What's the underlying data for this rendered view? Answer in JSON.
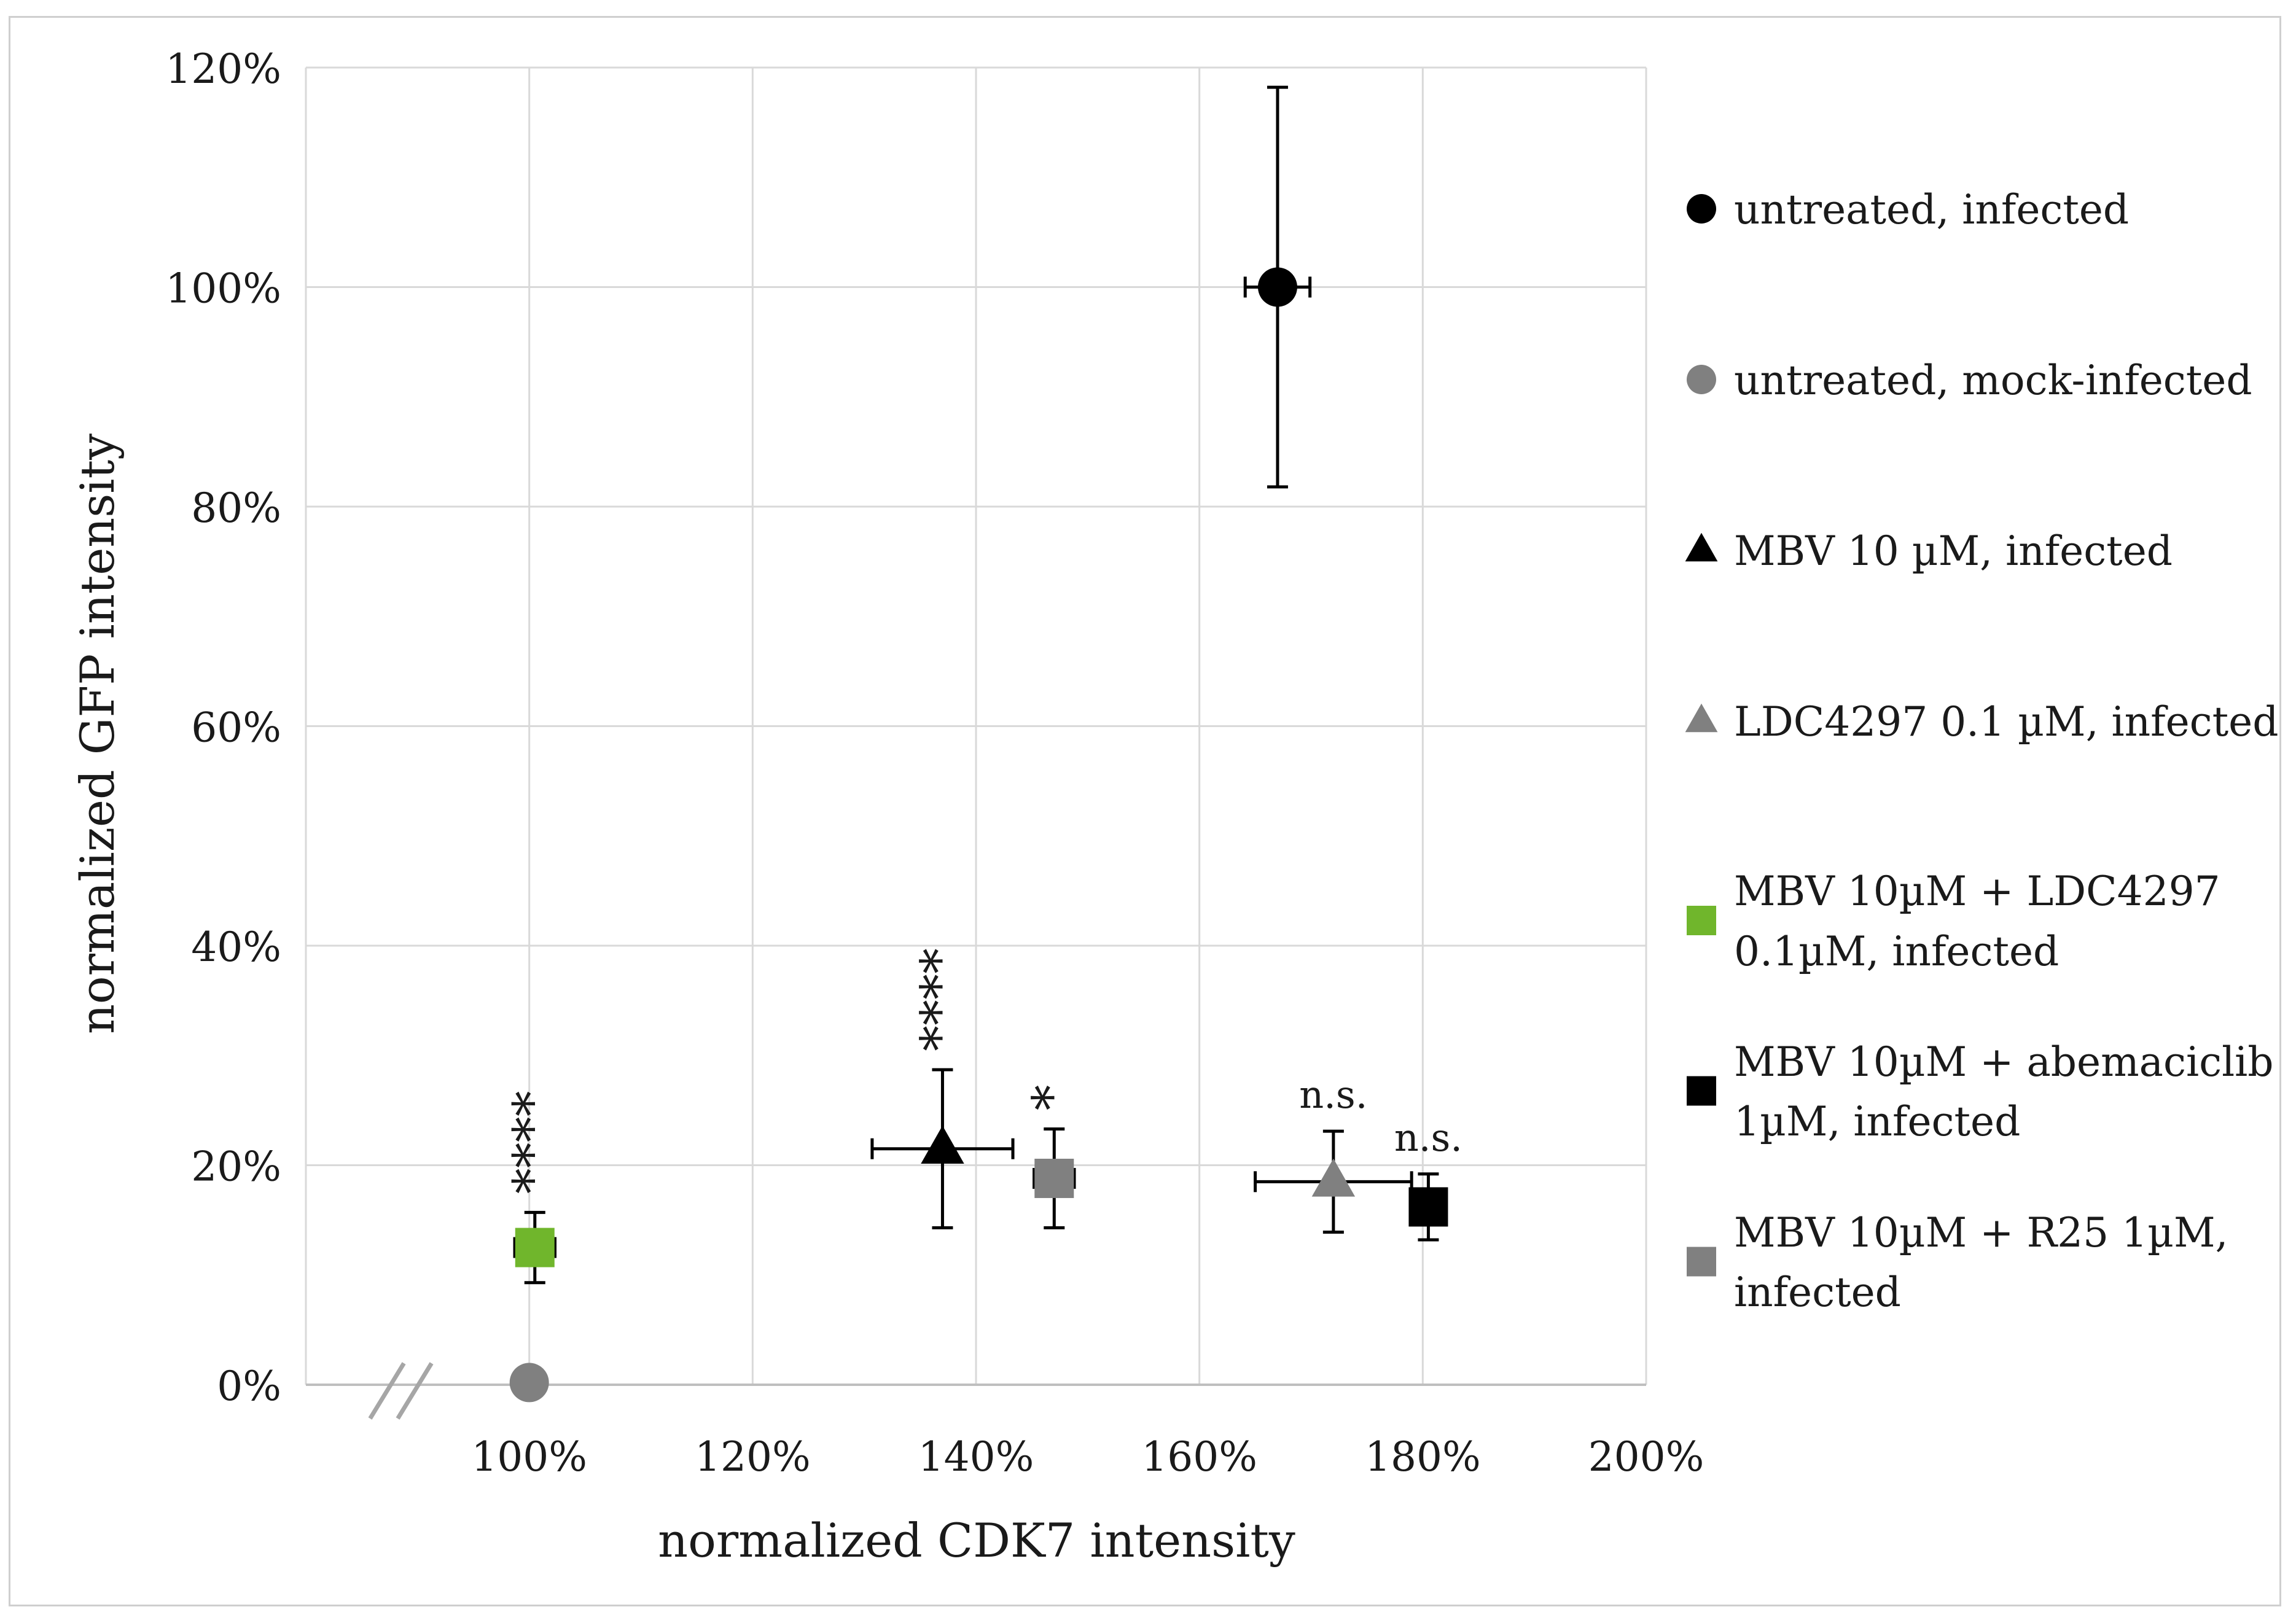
{
  "chart_data": {
    "type": "scatter",
    "title": "",
    "xlabel": "normalized CDK7 intensity",
    "ylabel": "normalized GFP intensity",
    "xlim": [
      80,
      200
    ],
    "ylim": [
      0,
      120
    ],
    "x_ticks": [
      100,
      120,
      140,
      160,
      180,
      200
    ],
    "x_tick_labels": [
      "100%",
      "120%",
      "140%",
      "160%",
      "180%",
      "200%"
    ],
    "y_ticks": [
      0,
      20,
      40,
      60,
      80,
      100,
      120
    ],
    "y_tick_labels": [
      "0%",
      "20%",
      "40%",
      "60%",
      "80%",
      "100%",
      "120%"
    ],
    "grid": true,
    "legend_position": "right",
    "x_axis_break": true,
    "series": [
      {
        "name": "untreated, infected",
        "label_lines": [
          "untreated, infected"
        ],
        "marker": "circle",
        "color": "#000000",
        "x": 167,
        "y": 100,
        "x_err": 2.9,
        "y_err": 18.2,
        "annotation": ""
      },
      {
        "name": "untreated, mock-infected",
        "label_lines": [
          "untreated, mock-infected"
        ],
        "marker": "circle",
        "color": "#808080",
        "x": 100,
        "y": 0.2,
        "x_err": 1.0,
        "y_err": 0,
        "annotation": ""
      },
      {
        "name": "MBV 10 µM, infected",
        "label_lines": [
          "MBV 10 µM, infected"
        ],
        "marker": "triangle",
        "color": "#000000",
        "x": 137,
        "y": 21.5,
        "x_err": 6.3,
        "y_err": 7.2,
        "annotation": "****"
      },
      {
        "name": "LDC4297 0.1 µM, infected",
        "label_lines": [
          "LDC4297 0.1 µM, infected"
        ],
        "marker": "triangle",
        "color": "#808080",
        "x": 172,
        "y": 18.5,
        "x_err": 7.0,
        "y_err": 4.6,
        "annotation": "n.s."
      },
      {
        "name": "MBV 10µM + LDC4297 0.1µM, infected",
        "label_lines": [
          "MBV 10µM + LDC4297",
          "0.1µM, infected"
        ],
        "marker": "square",
        "color": "#70b62c",
        "x": 100.5,
        "y": 12.5,
        "x_err": 1.8,
        "y_err": 3.2,
        "annotation": "****"
      },
      {
        "name": "MBV 10µM + abemaciclib 1µM, infected",
        "label_lines": [
          "MBV 10µM + abemaciclib",
          "1µM, infected"
        ],
        "marker": "square",
        "color": "#000000",
        "x": 180.5,
        "y": 16.2,
        "x_err": 1.3,
        "y_err": 3.0,
        "annotation": "n.s."
      },
      {
        "name": "MBV 10µM + R25 1µM, infected",
        "label_lines": [
          "MBV 10µM + R25 1µM,",
          "infected"
        ],
        "marker": "square",
        "color": "#808080",
        "x": 147,
        "y": 18.8,
        "x_err": 1.8,
        "y_err": 4.5,
        "annotation": "*"
      }
    ],
    "legend_order": [
      0,
      1,
      2,
      3,
      4,
      5,
      6
    ]
  }
}
